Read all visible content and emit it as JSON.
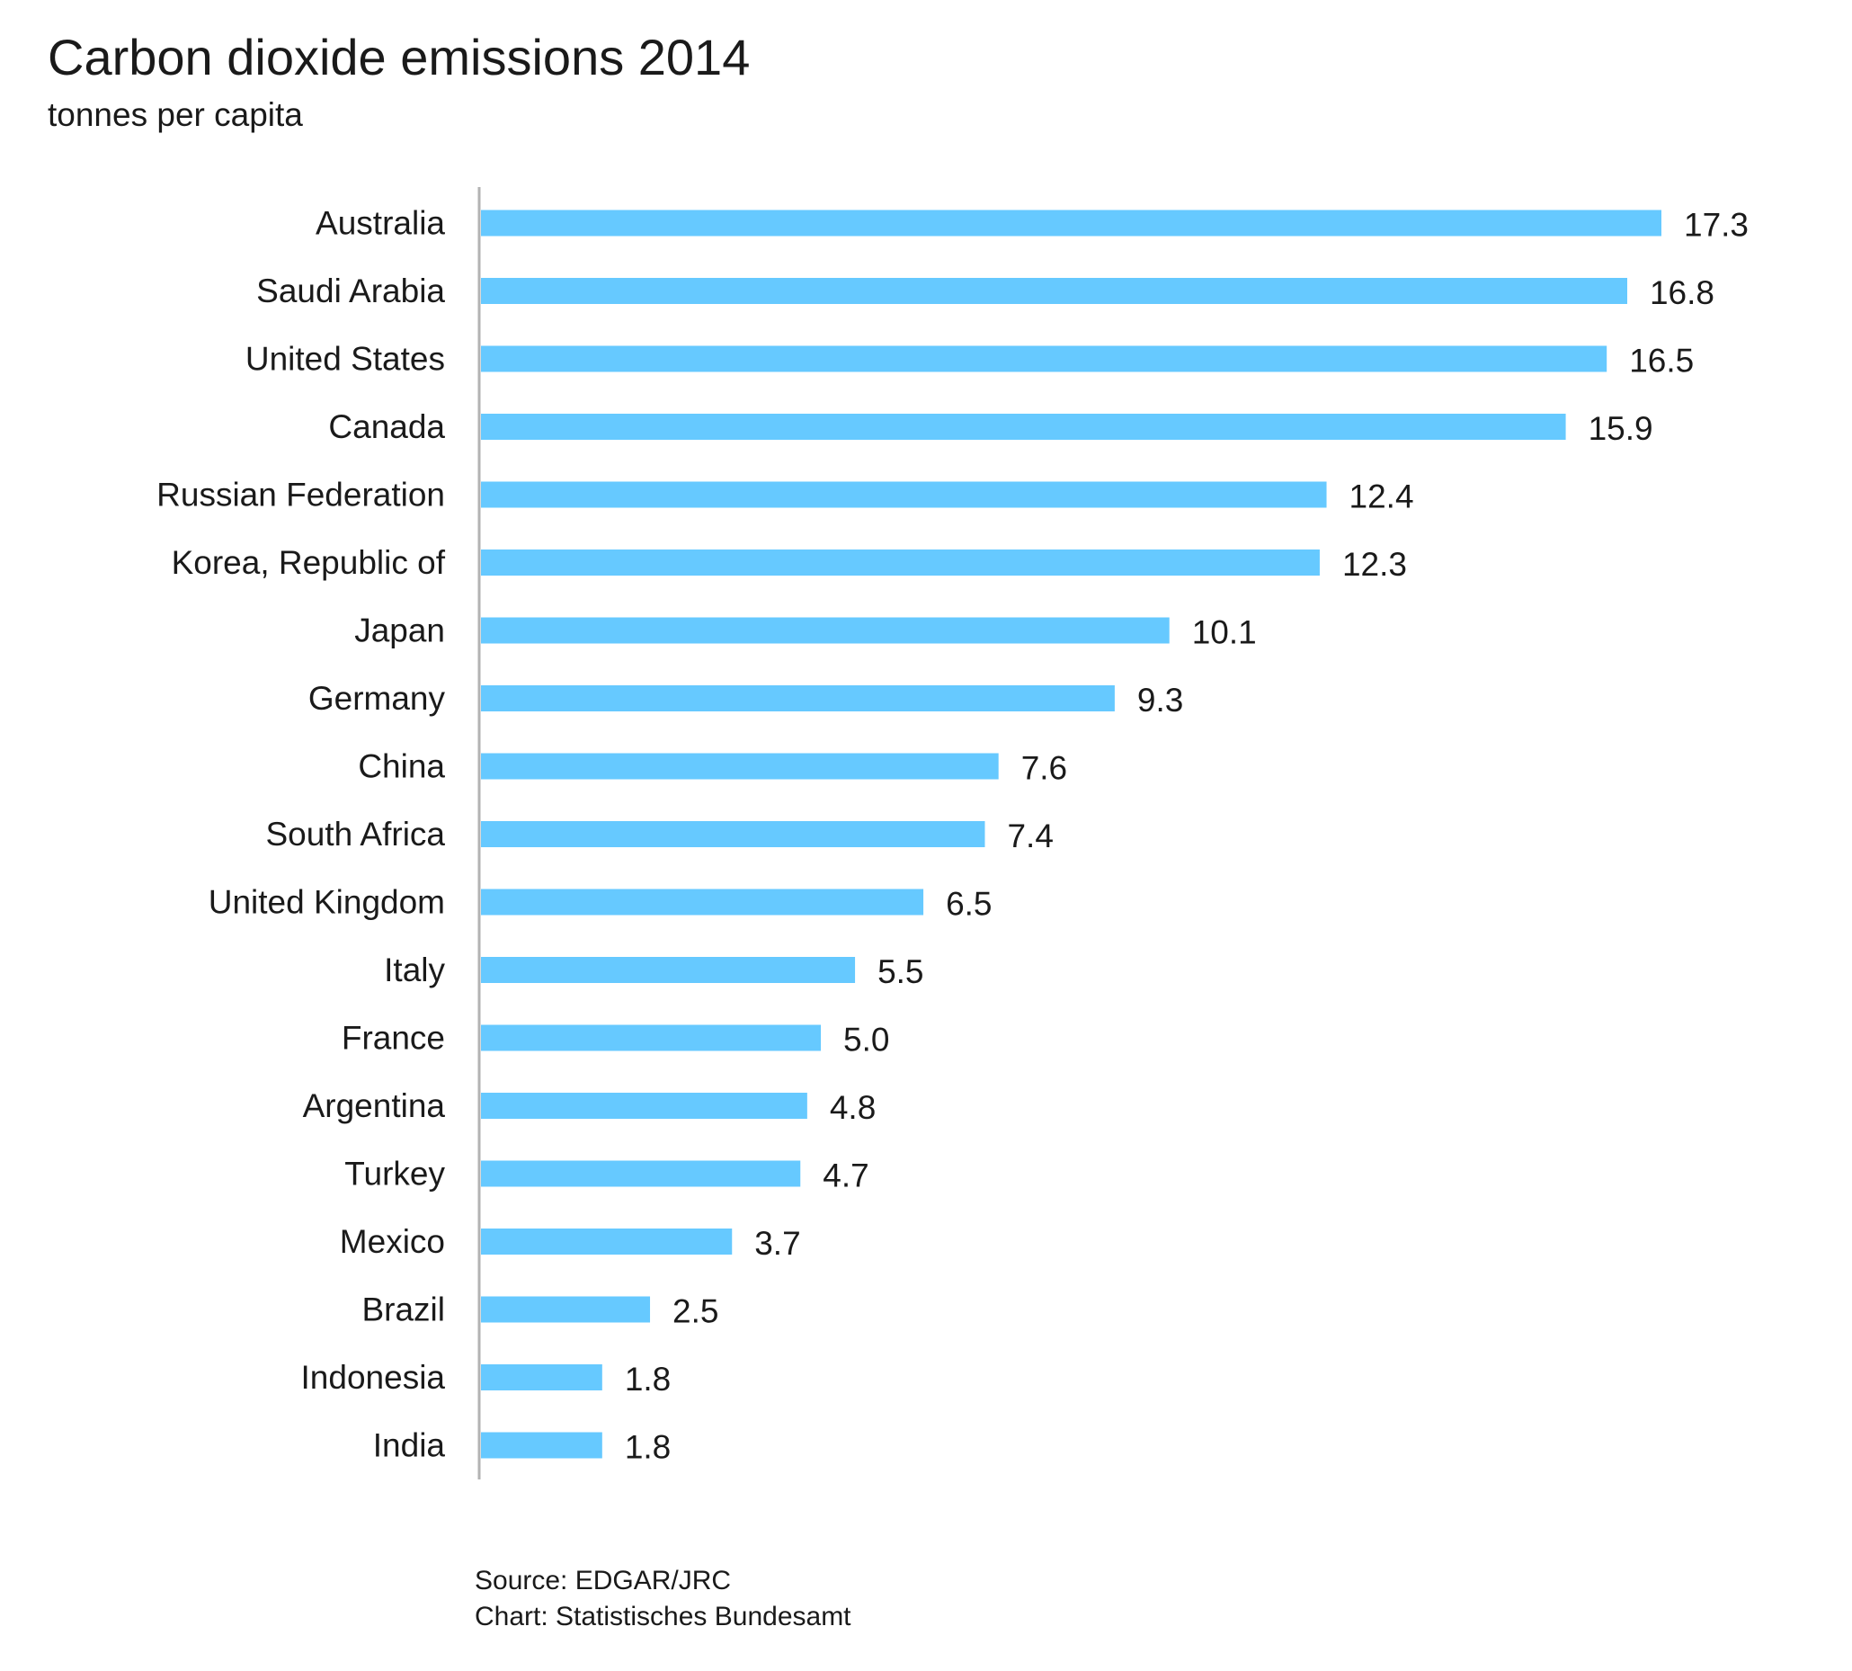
{
  "chart_data": {
    "type": "bar",
    "orientation": "horizontal",
    "title": "Carbon dioxide emissions 2014",
    "subtitle": "tonnes per capita",
    "categories": [
      "Australia",
      "Saudi Arabia",
      "United States",
      "Canada",
      "Russian Federation",
      "Korea, Republic of",
      "Japan",
      "Germany",
      "China",
      "South Africa",
      "United Kingdom",
      "Italy",
      "France",
      "Argentina",
      "Turkey",
      "Mexico",
      "Brazil",
      "Indonesia",
      "India"
    ],
    "values": [
      17.3,
      16.8,
      16.5,
      15.9,
      12.4,
      12.3,
      10.1,
      9.3,
      7.6,
      7.4,
      6.5,
      5.5,
      5.0,
      4.8,
      4.7,
      3.7,
      2.5,
      1.8,
      1.8
    ],
    "value_labels": [
      "17.3",
      "16.8",
      "16.5",
      "15.9",
      "12.4",
      "12.3",
      "10.1",
      "9.3",
      "7.6",
      "7.4",
      "6.5",
      "5.5",
      "5.0",
      "4.8",
      "4.7",
      "3.7",
      "2.5",
      "1.8",
      "1.8"
    ],
    "xlim": [
      0,
      17.3
    ],
    "grid": false,
    "legend": "none",
    "bar_color": "#66c9ff",
    "axis_color": "#b3b3b3",
    "source_lines": [
      "Source: EDGAR/JRC",
      "Chart: Statistisches Bundesamt"
    ]
  }
}
